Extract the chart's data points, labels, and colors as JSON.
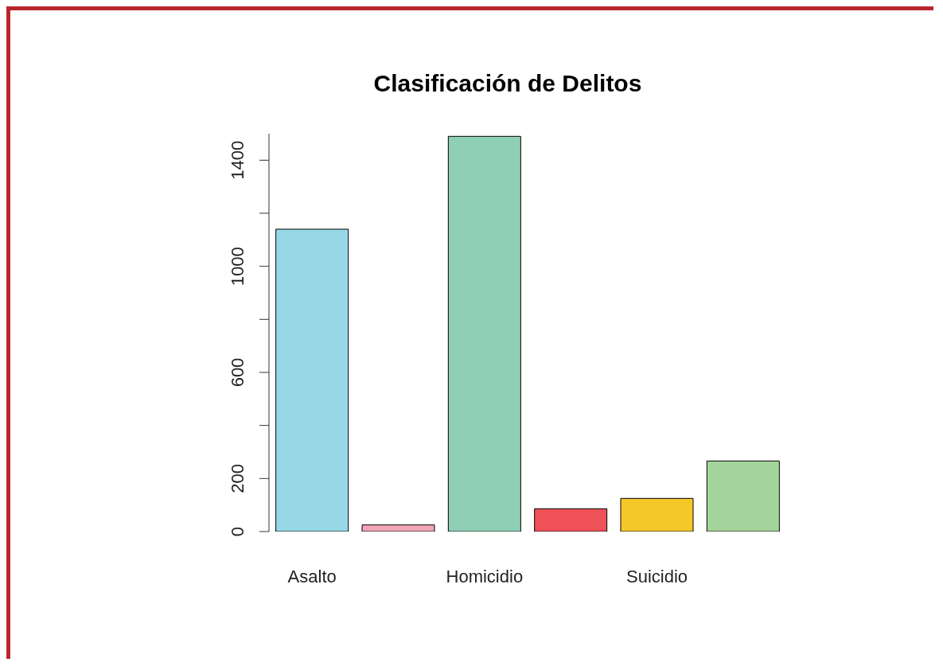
{
  "chart_data": {
    "type": "bar",
    "title": "Clasificación de Delitos",
    "categories": [
      "Asalto",
      null,
      "Homicidio",
      null,
      "Suicidio",
      null
    ],
    "values": [
      1140,
      25,
      1490,
      86,
      125,
      266
    ],
    "colors": [
      "#97d8e6",
      "#f2a5b4",
      "#8fcfb5",
      "#ef5158",
      "#f5c82a",
      "#a5d59c"
    ],
    "ylim": [
      0,
      1500
    ],
    "yticks": [
      0,
      200,
      {
        "value": 400,
        "label": null
      },
      600,
      {
        "value": 800,
        "label": null
      },
      1000,
      {
        "value": 1200,
        "label": null
      },
      1400
    ],
    "grid": false
  }
}
